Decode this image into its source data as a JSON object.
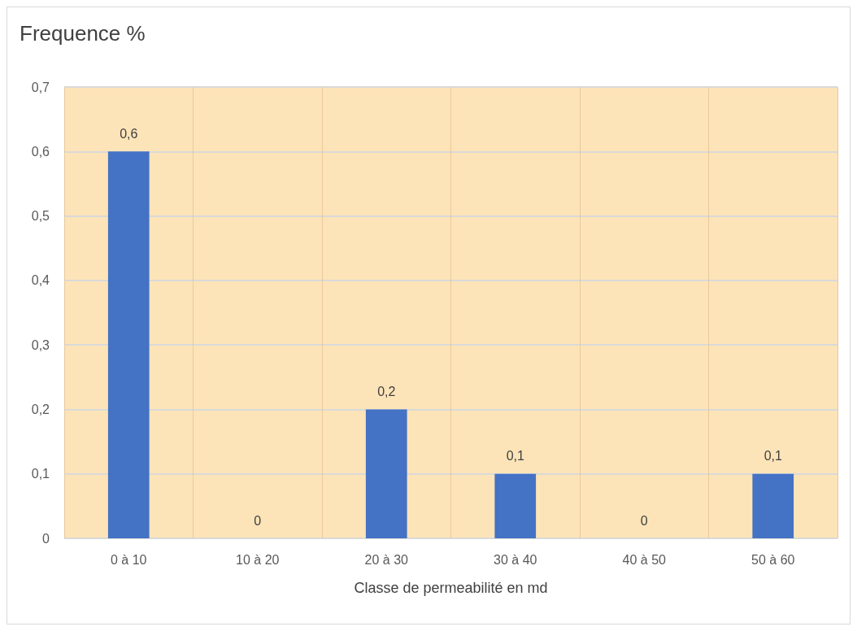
{
  "chart_data": {
    "type": "bar",
    "title": "Frequence %",
    "xlabel": "Classe de permeabilité en md",
    "categories": [
      "0 à 10",
      "10 à 20",
      "20 à 30",
      "30 à 40",
      "40 à 50",
      "50 à 60"
    ],
    "values": [
      0.6,
      0,
      0.2,
      0.1,
      0,
      0.1
    ],
    "value_labels": [
      "0,6",
      "0",
      "0,2",
      "0,1",
      "0",
      "0,1"
    ],
    "color": "#4472c4",
    "ylim": [
      0,
      0.7
    ],
    "yticks": [
      0,
      {
        "value": 0.1,
        "label": "0,1"
      },
      {
        "value": 0.2,
        "label": "0,2"
      },
      {
        "value": 0.3,
        "label": "0,3"
      },
      {
        "value": 0.4,
        "label": "0,4"
      },
      {
        "value": 0.5,
        "label": "0,5"
      },
      {
        "value": 0.6,
        "label": "0,6"
      },
      {
        "value": 0.7,
        "label": "0,7"
      }
    ],
    "grid": true
  }
}
